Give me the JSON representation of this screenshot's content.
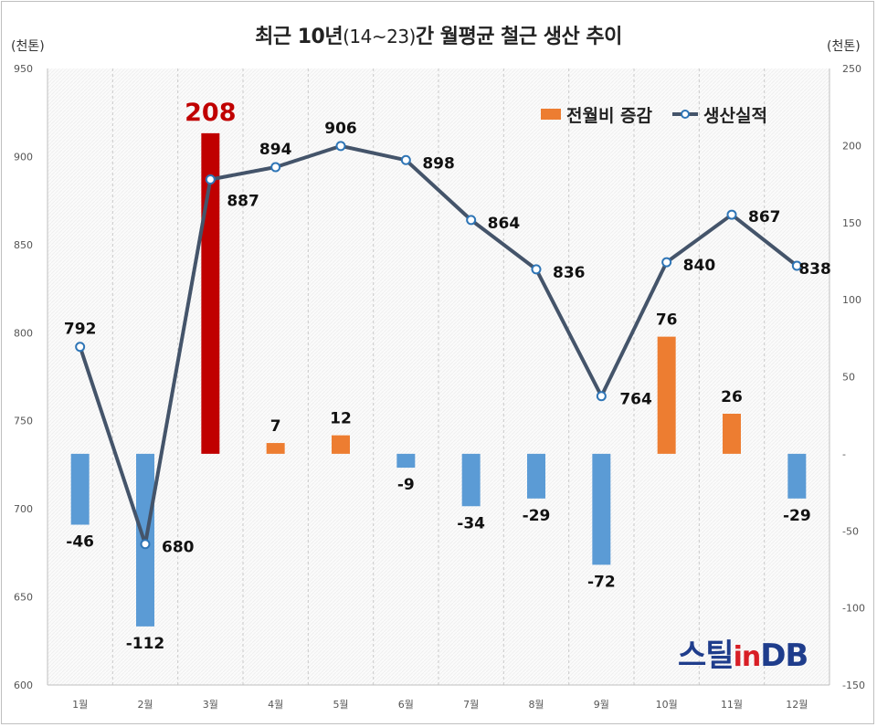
{
  "chart_data": {
    "type": "bar+line",
    "title": "최근 10년(14~23)간 월평균 철근 생산 추이",
    "title_main_prefix": "최근 10년",
    "title_sub": "(14~23)",
    "title_main_suffix": "간 월평균 철근 생산 추이",
    "left_unit": "(천톤)",
    "right_unit": "(천톤)",
    "categories": [
      "1월",
      "2월",
      "3월",
      "4월",
      "5월",
      "6월",
      "7월",
      "8월",
      "9월",
      "10월",
      "11월",
      "12월"
    ],
    "left_axis": {
      "min": 600,
      "max": 950,
      "ticks": [
        "600",
        "650",
        "700",
        "750",
        "800",
        "850",
        "900",
        "950"
      ]
    },
    "right_axis": {
      "min": -150,
      "max": 250,
      "ticks": [
        "-150",
        "-100",
        "-50",
        "-",
        "50",
        "100",
        "150",
        "200",
        "250"
      ]
    },
    "grid": "vertical dashed",
    "legend_position": "top-right",
    "series": [
      {
        "name": "전월비 증감",
        "type": "bar",
        "axis": "right",
        "values": [
          -46,
          -112,
          208,
          7,
          12,
          -9,
          -34,
          -29,
          -72,
          76,
          26,
          -29
        ],
        "colors": {
          "positive": "#ed7d31",
          "negative": "#5b9bd5",
          "highlight": "#c00000"
        },
        "highlight_index": 2
      },
      {
        "name": "생산실적",
        "type": "line",
        "axis": "left",
        "values": [
          792,
          680,
          887,
          894,
          906,
          898,
          864,
          836,
          764,
          840,
          867,
          838
        ],
        "color": "#44546a"
      }
    ]
  },
  "logo": {
    "prefix": "스틸",
    "in": "in",
    "suffix": "DB"
  }
}
